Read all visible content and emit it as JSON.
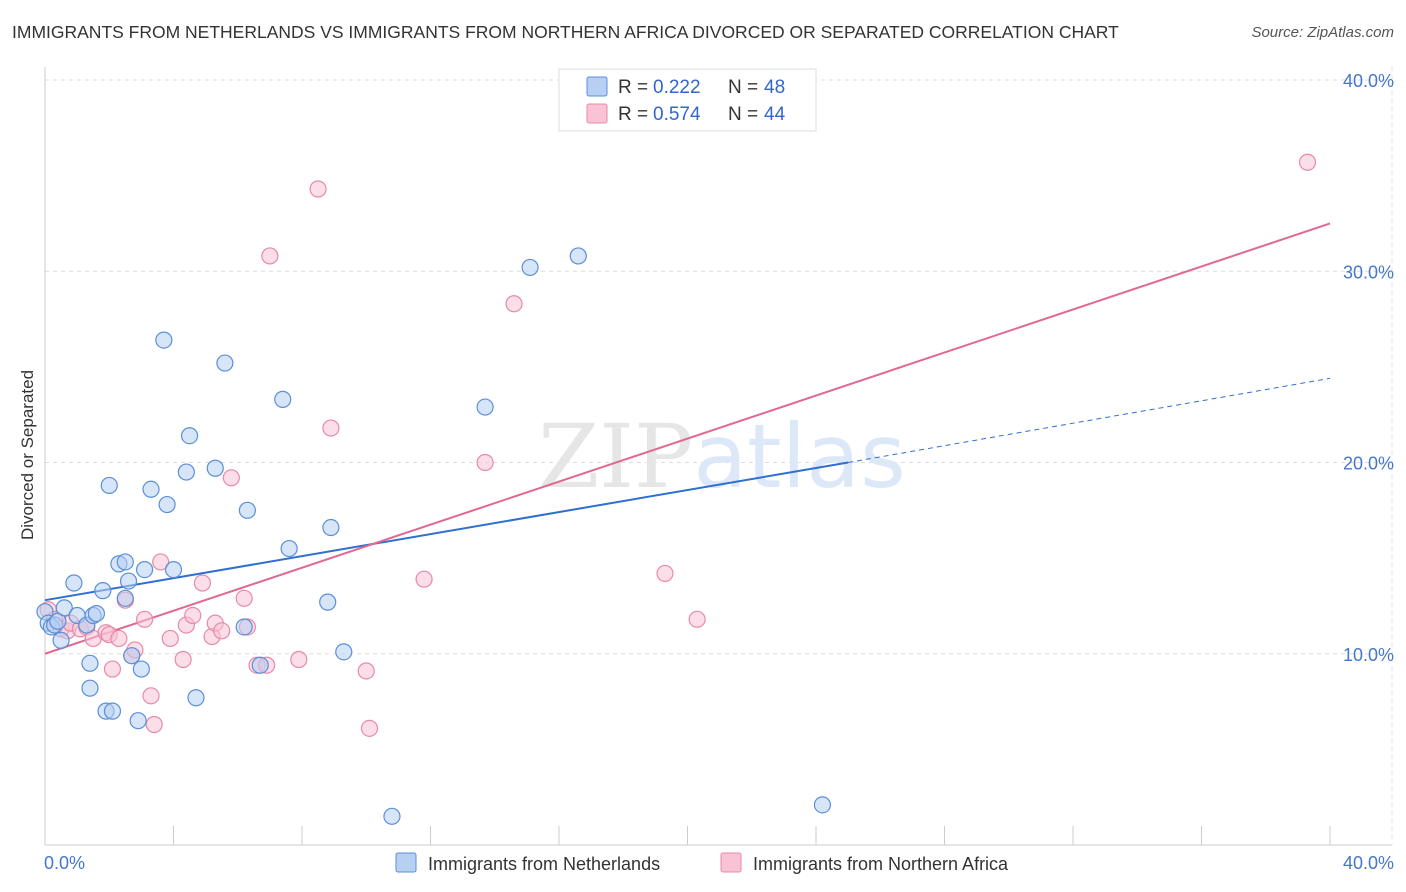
{
  "title": "IMMIGRANTS FROM NETHERLANDS VS IMMIGRANTS FROM NORTHERN AFRICA DIVORCED OR SEPARATED CORRELATION CHART",
  "source": "Source: ZipAtlas.com",
  "watermark": "ZIPatlas",
  "colors": {
    "blue": "#5b8fd8",
    "blue_fill": "#b7cff2",
    "blue_line": "#2f6fd0",
    "pink": "#e889aa",
    "pink_fill": "#f7c3d5",
    "pink_line": "#e06892",
    "tick_text": "#4477cc",
    "grid": "#dddddd"
  },
  "legend": {
    "r_label": "R =",
    "n_label": "N =",
    "rows": [
      {
        "series": "blue",
        "r": "0.222",
        "n": "48"
      },
      {
        "series": "pink",
        "r": "0.574",
        "n": "44"
      }
    ]
  },
  "chart_data": {
    "type": "scatter",
    "title": "IMMIGRANTS FROM NETHERLANDS VS IMMIGRANTS FROM NORTHERN AFRICA DIVORCED OR SEPARATED CORRELATION CHART",
    "xlabel": "",
    "ylabel": "Divorced or Separated",
    "xlim": [
      0,
      40
    ],
    "ylim": [
      0,
      40
    ],
    "x_tick_labels": [
      "0.0%",
      "40.0%"
    ],
    "y_ticks": [
      10,
      20,
      30,
      40
    ],
    "y_tick_labels": [
      "10.0%",
      "20.0%",
      "30.0%",
      "40.0%"
    ],
    "grid": true,
    "legend_position": "top-center",
    "series": [
      {
        "name": "Immigrants from Netherlands",
        "color": "blue",
        "r": 0.222,
        "n": 48,
        "trend": {
          "x0": 0,
          "y0": 12.8,
          "x1": 25,
          "y1": 20.0,
          "dashed_to_x": 40,
          "dashed_to_y": 24.4
        },
        "points": [
          [
            0.0,
            12.2
          ],
          [
            0.1,
            11.6
          ],
          [
            0.2,
            11.4
          ],
          [
            0.3,
            11.5
          ],
          [
            0.4,
            11.7
          ],
          [
            0.5,
            10.7
          ],
          [
            0.6,
            12.4
          ],
          [
            0.9,
            13.7
          ],
          [
            1.0,
            12.0
          ],
          [
            1.3,
            11.5
          ],
          [
            1.4,
            9.5
          ],
          [
            1.4,
            8.2
          ],
          [
            1.5,
            12.0
          ],
          [
            1.6,
            12.1
          ],
          [
            1.8,
            13.3
          ],
          [
            1.9,
            7.0
          ],
          [
            2.0,
            18.8
          ],
          [
            2.1,
            7.0
          ],
          [
            2.3,
            14.7
          ],
          [
            2.5,
            12.9
          ],
          [
            2.5,
            14.8
          ],
          [
            2.6,
            13.8
          ],
          [
            2.7,
            9.9
          ],
          [
            2.9,
            6.5
          ],
          [
            3.0,
            9.2
          ],
          [
            3.1,
            14.4
          ],
          [
            3.3,
            18.6
          ],
          [
            3.7,
            26.4
          ],
          [
            3.8,
            17.8
          ],
          [
            4.0,
            14.4
          ],
          [
            4.4,
            19.5
          ],
          [
            4.5,
            21.4
          ],
          [
            4.7,
            7.7
          ],
          [
            5.3,
            19.7
          ],
          [
            5.6,
            25.2
          ],
          [
            6.3,
            17.5
          ],
          [
            6.2,
            11.4
          ],
          [
            6.7,
            9.4
          ],
          [
            7.4,
            23.3
          ],
          [
            7.6,
            15.5
          ],
          [
            8.8,
            12.7
          ],
          [
            8.9,
            16.6
          ],
          [
            9.3,
            10.1
          ],
          [
            10.8,
            1.5
          ],
          [
            13.7,
            22.9
          ],
          [
            15.1,
            30.2
          ],
          [
            16.6,
            30.8
          ],
          [
            24.2,
            2.1
          ]
        ]
      },
      {
        "name": "Immigrants from Northern Africa",
        "color": "pink",
        "r": 0.574,
        "n": 44,
        "trend": {
          "x0": 0,
          "y0": 10.0,
          "x1": 40,
          "y1": 32.5
        },
        "points": [
          [
            0.1,
            12.3
          ],
          [
            0.3,
            11.8
          ],
          [
            0.5,
            11.3
          ],
          [
            0.7,
            11.2
          ],
          [
            0.8,
            11.6
          ],
          [
            1.1,
            11.3
          ],
          [
            1.3,
            11.4
          ],
          [
            1.5,
            10.8
          ],
          [
            1.9,
            11.1
          ],
          [
            2.0,
            11.0
          ],
          [
            2.1,
            9.2
          ],
          [
            2.3,
            10.8
          ],
          [
            2.5,
            12.8
          ],
          [
            2.7,
            9.9
          ],
          [
            2.8,
            10.2
          ],
          [
            3.1,
            11.8
          ],
          [
            3.3,
            7.8
          ],
          [
            3.4,
            6.3
          ],
          [
            3.6,
            14.8
          ],
          [
            3.9,
            10.8
          ],
          [
            4.3,
            9.7
          ],
          [
            4.4,
            11.5
          ],
          [
            4.6,
            12.0
          ],
          [
            4.9,
            13.7
          ],
          [
            5.2,
            10.9
          ],
          [
            5.3,
            11.6
          ],
          [
            5.5,
            11.2
          ],
          [
            5.8,
            19.2
          ],
          [
            6.2,
            12.9
          ],
          [
            6.3,
            11.4
          ],
          [
            6.6,
            9.4
          ],
          [
            6.9,
            9.4
          ],
          [
            7.0,
            30.8
          ],
          [
            7.9,
            9.7
          ],
          [
            8.5,
            34.3
          ],
          [
            8.9,
            21.8
          ],
          [
            10.0,
            9.1
          ],
          [
            10.1,
            6.1
          ],
          [
            11.8,
            13.9
          ],
          [
            13.7,
            20.0
          ],
          [
            14.6,
            28.3
          ],
          [
            19.3,
            14.2
          ],
          [
            20.3,
            11.8
          ],
          [
            39.3,
            35.7
          ]
        ]
      }
    ]
  }
}
